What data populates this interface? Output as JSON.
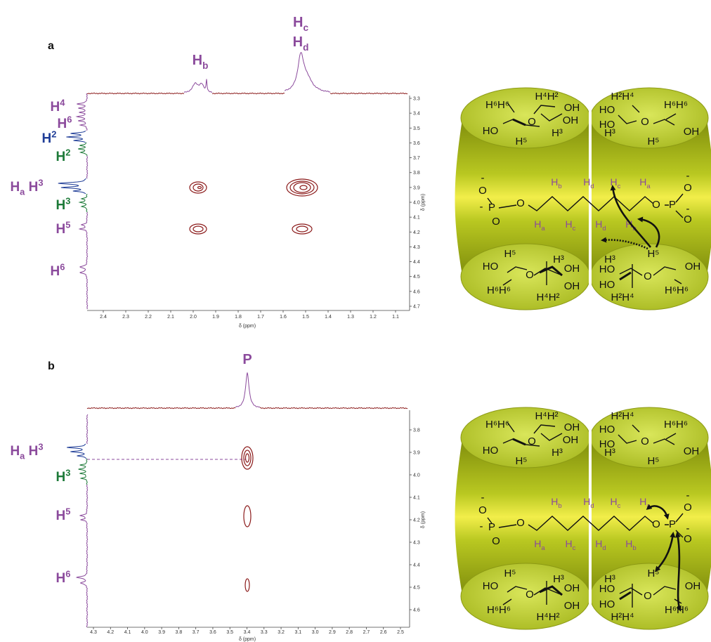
{
  "panels": [
    {
      "label": "a",
      "top_labels": [
        [
          {
            "text": "H"
          },
          {
            "text": "b",
            "script": "sub"
          }
        ],
        [
          {
            "text": "H"
          },
          {
            "text": "c",
            "script": "sub"
          }
        ],
        [
          {
            "text": "H"
          },
          {
            "text": "d",
            "script": "sub"
          }
        ]
      ],
      "left_labels": [
        [
          {
            "text": "H"
          },
          {
            "text": "4",
            "script": "sup"
          }
        ],
        [
          {
            "text": "H"
          },
          {
            "text": "6",
            "script": "sup"
          }
        ],
        [
          {
            "text": "H"
          },
          {
            "text": "2",
            "script": "sup"
          }
        ],
        [
          {
            "text": "H"
          },
          {
            "text": "2",
            "script": "sup"
          }
        ],
        [
          {
            "text": "H"
          },
          {
            "text": "a",
            "script": "sub"
          },
          {
            "text": " H"
          },
          {
            "text": "3",
            "script": "sup"
          }
        ],
        [
          {
            "text": "H"
          },
          {
            "text": "3",
            "script": "sup"
          }
        ],
        [
          {
            "text": "H"
          },
          {
            "text": "5",
            "script": "sup"
          }
        ],
        [
          {
            "text": "H"
          },
          {
            "text": "6",
            "script": "sup"
          }
        ]
      ],
      "x_ticks": [
        "2.4",
        "2.3",
        "2.2",
        "2.1",
        "2.0",
        "1.9",
        "1.8",
        "1.7",
        "1.6",
        "1.5",
        "1.4",
        "1.3",
        "1.2",
        "1.1"
      ],
      "x_title": "δ (ppm)",
      "y_ticks": [
        "3.3",
        "3.4",
        "3.5",
        "3.6",
        "3.7",
        "3.8",
        "3.9",
        "4.0",
        "4.1",
        "4.2",
        "4.3",
        "4.4",
        "4.5",
        "4.6",
        "4.7"
      ],
      "y_title": "δ (ppm)",
      "diagram": [
        "H⁶H⁶",
        "H⁴H²",
        "OH",
        "HO",
        "OH",
        "O",
        "H⁵",
        "H³",
        "H²H⁴",
        "H⁶H⁶",
        "HO",
        "HO",
        "O",
        "OH",
        "H³",
        "H⁵",
        "-",
        "O",
        "-",
        "P",
        "O",
        "O",
        [
          {
            "text": "H"
          },
          {
            "text": "b",
            "script": "sub"
          }
        ],
        [
          {
            "text": "H"
          },
          {
            "text": "d",
            "script": "sub"
          }
        ],
        [
          {
            "text": "H"
          },
          {
            "text": "c",
            "script": "sub"
          }
        ],
        [
          {
            "text": "H"
          },
          {
            "text": "a",
            "script": "sub"
          }
        ],
        [
          {
            "text": "H"
          },
          {
            "text": "a",
            "script": "sub"
          }
        ],
        [
          {
            "text": "H"
          },
          {
            "text": "c",
            "script": "sub"
          }
        ],
        [
          {
            "text": "H"
          },
          {
            "text": "d",
            "script": "sub"
          }
        ],
        [
          {
            "text": "H"
          },
          {
            "text": "b",
            "script": "sub"
          }
        ],
        "O",
        "P",
        "-",
        "O",
        "O",
        "-",
        "H⁵",
        "H³",
        "HO",
        "OH",
        "O",
        "H⁶H⁶",
        "OH",
        "H⁴H²",
        "H³",
        "H⁵",
        "HO",
        "OH",
        "O",
        "H²H⁴",
        "H⁶H⁶",
        "HO"
      ]
    },
    {
      "label": "b",
      "top_labels": [
        [
          {
            "text": "P"
          }
        ]
      ],
      "left_labels": [
        [
          {
            "text": "H"
          },
          {
            "text": "a",
            "script": "sub"
          },
          {
            "text": " H"
          },
          {
            "text": "3",
            "script": "sup"
          }
        ],
        [
          {
            "text": "H"
          },
          {
            "text": "3",
            "script": "sup"
          }
        ],
        [
          {
            "text": "H"
          },
          {
            "text": "5",
            "script": "sup"
          }
        ],
        [
          {
            "text": "H"
          },
          {
            "text": "6",
            "script": "sup"
          }
        ]
      ],
      "x_ticks": [
        "4.3",
        "4.2",
        "4.1",
        "4.0",
        "3.9",
        "3.8",
        "3.7",
        "3.6",
        "3.5",
        "3.4",
        "3.3",
        "3.2",
        "3.1",
        "3.0",
        "2.9",
        "2.8",
        "2.7",
        "2.6",
        "2.5"
      ],
      "x_title": "δ (ppm)",
      "y_ticks": [
        "3.8",
        "3.9",
        "4.0",
        "4.1",
        "4.2",
        "4.3",
        "4.4",
        "4.5",
        "4.6"
      ],
      "y_title": "δ (ppm)",
      "diagram": [
        "H⁶H⁶",
        "H⁴H²",
        "OH",
        "HO",
        "OH",
        "O",
        "H⁵",
        "H³",
        "H²H⁴",
        "H⁶H⁶",
        "HO",
        "HO",
        "O",
        "OH",
        "H³",
        "H⁵",
        "-",
        "O",
        "-",
        "P",
        "O",
        "O",
        [
          {
            "text": "H"
          },
          {
            "text": "b",
            "script": "sub"
          }
        ],
        [
          {
            "text": "H"
          },
          {
            "text": "d",
            "script": "sub"
          }
        ],
        [
          {
            "text": "H"
          },
          {
            "text": "c",
            "script": "sub"
          }
        ],
        [
          {
            "text": "H"
          },
          {
            "text": "a",
            "script": "sub"
          }
        ],
        [
          {
            "text": "H"
          },
          {
            "text": "a",
            "script": "sub"
          }
        ],
        [
          {
            "text": "H"
          },
          {
            "text": "c",
            "script": "sub"
          }
        ],
        [
          {
            "text": "H"
          },
          {
            "text": "d",
            "script": "sub"
          }
        ],
        [
          {
            "text": "H"
          },
          {
            "text": "b",
            "script": "sub"
          }
        ],
        "O",
        "P",
        "-",
        "O",
        "O",
        "-",
        "H⁵",
        "H³",
        "HO",
        "OH",
        "O",
        "H⁶H⁶",
        "OH",
        "H⁴H²",
        "H³",
        "H⁵",
        "HO",
        "OH",
        "O",
        "H²H⁴",
        "H⁶H⁶",
        "HO"
      ]
    }
  ]
}
